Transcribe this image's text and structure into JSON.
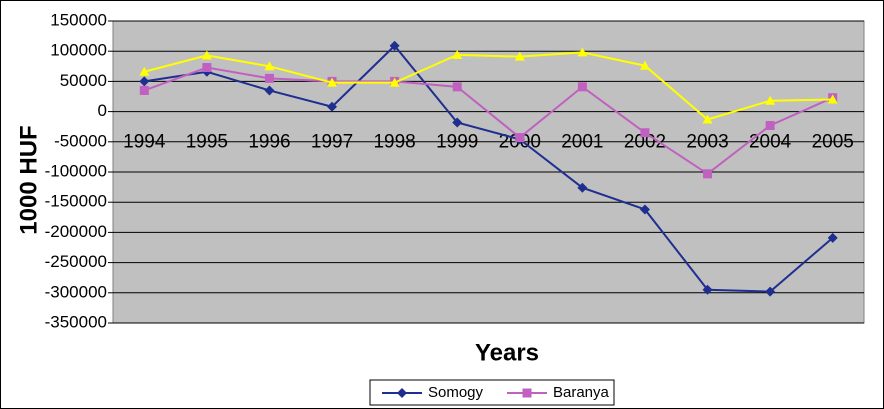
{
  "chart_data": {
    "type": "line",
    "y_label": "1000 HUF",
    "x_label": "Years",
    "categories": [
      "1994",
      "1995",
      "1996",
      "1997",
      "1998",
      "1999",
      "2000",
      "2001",
      "2002",
      "2003",
      "2004",
      "2005"
    ],
    "series": [
      {
        "name": "Somogy",
        "color": "#1f2f8f",
        "marker": "diamond",
        "values": [
          50000,
          66000,
          35000,
          8000,
          109000,
          -18000,
          -46000,
          -126000,
          -162000,
          -295000,
          -298000,
          -209000
        ]
      },
      {
        "name": "Baranya",
        "color": "#c060c0",
        "marker": "square",
        "values": [
          35000,
          73000,
          55000,
          50000,
          50000,
          41000,
          -43000,
          41000,
          -35000,
          -103000,
          -23000,
          23000
        ]
      },
      {
        "color": "#ffff00",
        "marker": "triangle",
        "values": [
          66000,
          93000,
          75000,
          48000,
          48000,
          94000,
          91000,
          98000,
          76000,
          -13000,
          18000,
          20000
        ]
      }
    ],
    "ylim": [
      -350000,
      150000
    ],
    "yticks": [
      -350000,
      -300000,
      -250000,
      -200000,
      -150000,
      -100000,
      -50000,
      0,
      50000,
      100000,
      150000
    ],
    "grid": true,
    "plot_background": "#c0c0c0"
  }
}
